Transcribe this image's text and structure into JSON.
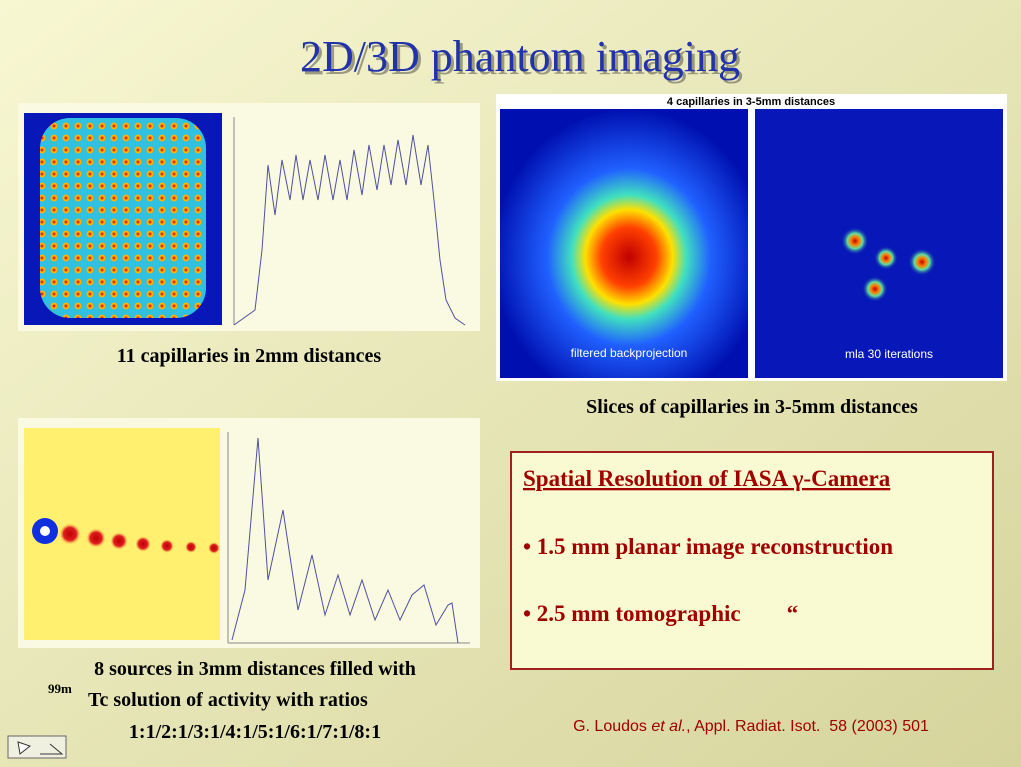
{
  "title": "2D/3D phantom imaging",
  "panel1": {
    "caption": "11 capillaries in 2mm distances"
  },
  "panel2": {
    "title": "4 capillaries in 3-5mm distances",
    "left_label": "filtered backprojection",
    "right_label": "mla 30 iterations",
    "caption": "Slices of capillaries in 3-5mm distances"
  },
  "panel3": {
    "caption_line1": "8 sources in 3mm distances filled  with",
    "superscript": "99m",
    "caption_line2": "Tc solution of activity with ratios",
    "caption_line3": "1:1/2:1/3:1/4:1/5:1/6:1/7:1/8:1"
  },
  "box": {
    "heading": "Spatial Resolution of IASA γ-Camera",
    "bullets": [
      "• 1.5 mm planar image reconstruction",
      "• 2.5 mm tomographic        “"
    ]
  },
  "citation": {
    "authors": "G. Loudos ",
    "etal": "et al.",
    "rest": ", Appl. Radiat. Isot.  58 (2003) 501"
  }
}
